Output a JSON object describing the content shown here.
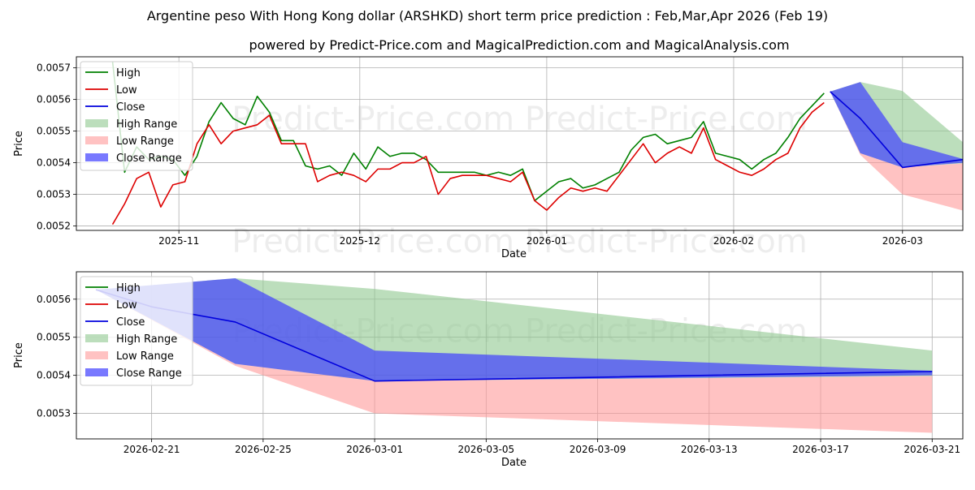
{
  "title": "Argentine peso With Hong Kong dollar (ARSHKD) short term price prediction : Feb,Mar,Apr 2026 (Feb 19)",
  "subtitle": "powered by Predict-Price.com and MagicalPrediction.com and MagicalAnalysis.com",
  "watermark": "Predict-Price.com",
  "colors": {
    "high": "#008000",
    "low": "#dd0000",
    "close": "#0000dd",
    "high_range": "#90c890",
    "low_range": "#ff9a9a",
    "close_range": "#4040ff"
  },
  "legend_labels": [
    "High",
    "Low",
    "Close",
    "High Range",
    "Low Range",
    "Close Range"
  ],
  "chart_data": [
    {
      "type": "line",
      "title": "",
      "xlabel": "Date",
      "ylabel": "Price",
      "xlim": [
        -6,
        141
      ],
      "ylim": [
        0.005186,
        0.005735
      ],
      "grid": true,
      "legend": "top-left",
      "x_ticks": [
        {
          "value": 11,
          "label": "2025-11"
        },
        {
          "value": 41,
          "label": "2025-12"
        },
        {
          "value": 72,
          "label": "2026-01"
        },
        {
          "value": 103,
          "label": "2026-02"
        },
        {
          "value": 131,
          "label": "2026-03"
        }
      ],
      "y_ticks": [
        {
          "value": 0.0052,
          "label": "0.0052"
        },
        {
          "value": 0.0053,
          "label": "0.0053"
        },
        {
          "value": 0.0054,
          "label": "0.0054"
        },
        {
          "value": 0.0055,
          "label": "0.0055"
        },
        {
          "value": 0.0056,
          "label": "0.0056"
        },
        {
          "value": 0.0057,
          "label": "0.0057"
        }
      ],
      "series": [
        {
          "name": "High",
          "x": [
            0,
            2,
            4,
            6,
            8,
            10,
            12,
            14,
            16,
            18,
            20,
            22,
            24,
            26,
            28,
            30,
            32,
            34,
            36,
            38,
            40,
            42,
            44,
            46,
            48,
            50,
            52,
            54,
            56,
            58,
            60,
            62,
            64,
            66,
            68,
            70,
            72,
            74,
            76,
            78,
            80,
            82,
            84,
            86,
            88,
            90,
            92,
            94,
            96,
            98,
            100,
            102,
            104,
            106,
            108,
            110,
            112,
            114,
            116,
            118
          ],
          "values": [
            0.00572,
            0.00537,
            0.00545,
            0.00541,
            0.00542,
            0.00541,
            0.00536,
            0.00542,
            0.00553,
            0.00559,
            0.00554,
            0.00552,
            0.00561,
            0.00556,
            0.00547,
            0.00547,
            0.00539,
            0.00538,
            0.00539,
            0.00536,
            0.00543,
            0.00538,
            0.00545,
            0.00542,
            0.00543,
            0.00543,
            0.00541,
            0.00537,
            0.00537,
            0.00537,
            0.00537,
            0.00536,
            0.00537,
            0.00536,
            0.00538,
            0.00528,
            0.00531,
            0.00534,
            0.00535,
            0.00532,
            0.00533,
            0.00535,
            0.00537,
            0.00544,
            0.00548,
            0.00549,
            0.00546,
            0.00547,
            0.00548,
            0.00553,
            0.00543,
            0.00542,
            0.00541,
            0.00538,
            0.00541,
            0.00543,
            0.00548,
            0.00554,
            0.00558,
            0.00562
          ]
        },
        {
          "name": "Low",
          "x": [
            0,
            2,
            4,
            6,
            8,
            10,
            12,
            14,
            16,
            18,
            20,
            22,
            24,
            26,
            28,
            30,
            32,
            34,
            36,
            38,
            40,
            42,
            44,
            46,
            48,
            50,
            52,
            54,
            56,
            58,
            60,
            62,
            64,
            66,
            68,
            70,
            72,
            74,
            76,
            78,
            80,
            82,
            84,
            86,
            88,
            90,
            92,
            94,
            96,
            98,
            100,
            102,
            104,
            106,
            108,
            110,
            112,
            114,
            116,
            118
          ],
          "values": [
            0.005205,
            0.00527,
            0.00535,
            0.00537,
            0.00526,
            0.00533,
            0.00534,
            0.00546,
            0.00552,
            0.00546,
            0.0055,
            0.00551,
            0.00552,
            0.00555,
            0.00546,
            0.00546,
            0.00546,
            0.00534,
            0.00536,
            0.00537,
            0.00536,
            0.00534,
            0.00538,
            0.00538,
            0.0054,
            0.0054,
            0.00542,
            0.0053,
            0.00535,
            0.00536,
            0.00536,
            0.00536,
            0.00535,
            0.00534,
            0.00537,
            0.00528,
            0.00525,
            0.00529,
            0.00532,
            0.00531,
            0.00532,
            0.00531,
            0.00536,
            0.00541,
            0.00546,
            0.0054,
            0.00543,
            0.00545,
            0.00543,
            0.00551,
            0.00541,
            0.00539,
            0.00537,
            0.00536,
            0.00538,
            0.00541,
            0.00543,
            0.00551,
            0.00556,
            0.00559
          ]
        },
        {
          "name": "Close",
          "x": [
            119,
            124,
            131,
            141
          ],
          "values": [
            0.005625,
            0.00554,
            0.005385,
            0.00541
          ]
        }
      ],
      "ranges": [
        {
          "name": "High Range",
          "x": [
            119,
            124,
            131,
            141
          ],
          "upper": [
            0.005625,
            0.005655,
            0.005627,
            0.005465
          ],
          "lower": [
            0.005625,
            0.00543,
            0.005385,
            0.005398
          ]
        },
        {
          "name": "Low Range",
          "x": [
            119,
            124,
            131,
            141
          ],
          "upper": [
            0.005625,
            0.00543,
            0.005385,
            0.005398
          ],
          "lower": [
            0.005625,
            0.005425,
            0.0053,
            0.005249
          ]
        },
        {
          "name": "Close Range",
          "x": [
            119,
            124,
            131,
            141
          ],
          "upper": [
            0.005625,
            0.005655,
            0.005465,
            0.005412
          ],
          "lower": [
            0.005625,
            0.00543,
            0.005385,
            0.0054
          ]
        }
      ]
    },
    {
      "type": "line",
      "title": "",
      "xlabel": "Date",
      "ylabel": "Price",
      "xlim": [
        -0.7,
        31.1
      ],
      "ylim": [
        0.005233,
        0.005672
      ],
      "grid": true,
      "legend": "top-left",
      "x_ticks": [
        {
          "value": 2,
          "label": "2026-02-21"
        },
        {
          "value": 6,
          "label": "2026-02-25"
        },
        {
          "value": 10,
          "label": "2026-03-01"
        },
        {
          "value": 14,
          "label": "2026-03-05"
        },
        {
          "value": 18,
          "label": "2026-03-09"
        },
        {
          "value": 22,
          "label": "2026-03-13"
        },
        {
          "value": 26,
          "label": "2026-03-17"
        },
        {
          "value": 30,
          "label": "2026-03-21"
        }
      ],
      "y_ticks": [
        {
          "value": 0.0053,
          "label": "0.0053"
        },
        {
          "value": 0.0054,
          "label": "0.0054"
        },
        {
          "value": 0.0055,
          "label": "0.0055"
        },
        {
          "value": 0.0056,
          "label": "0.0056"
        }
      ],
      "series": [
        {
          "name": "High",
          "x": [],
          "values": []
        },
        {
          "name": "Low",
          "x": [],
          "values": []
        },
        {
          "name": "Close",
          "x": [
            0,
            2,
            5,
            10,
            30
          ],
          "values": [
            0.005625,
            0.00558,
            0.00554,
            0.005385,
            0.00541
          ]
        }
      ],
      "ranges": [
        {
          "name": "High Range",
          "x": [
            0,
            5,
            10,
            30
          ],
          "upper": [
            0.005625,
            0.005655,
            0.005627,
            0.005465
          ],
          "lower": [
            0.005625,
            0.00543,
            0.005385,
            0.005398
          ]
        },
        {
          "name": "Low Range",
          "x": [
            0,
            5,
            10,
            30
          ],
          "upper": [
            0.005625,
            0.00543,
            0.005385,
            0.005398
          ],
          "lower": [
            0.005625,
            0.005425,
            0.0053,
            0.005249
          ]
        },
        {
          "name": "Close Range",
          "x": [
            0,
            5,
            10,
            30
          ],
          "upper": [
            0.005625,
            0.005655,
            0.005465,
            0.005412
          ],
          "lower": [
            0.005625,
            0.00543,
            0.005385,
            0.0054
          ]
        }
      ]
    }
  ]
}
